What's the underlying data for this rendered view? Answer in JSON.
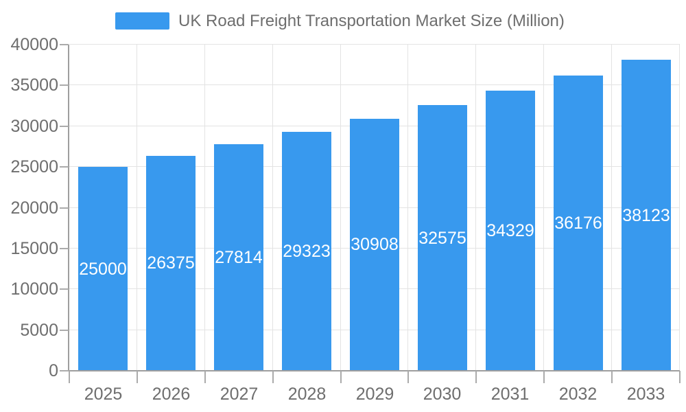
{
  "legend": {
    "label": "UK Road Freight Transportation Market Size (Million)"
  },
  "chart_data": {
    "type": "bar",
    "title": "UK Road Freight Transportation Market Size (Million)",
    "series_name": "UK Road Freight Transportation Market Size (Million)",
    "categories": [
      "2025",
      "2026",
      "2027",
      "2028",
      "2029",
      "2030",
      "2031",
      "2032",
      "2033"
    ],
    "values": [
      25000,
      26375,
      27814,
      29323,
      30908,
      32575,
      34329,
      36176,
      38123
    ],
    "xlabel": "",
    "ylabel": "",
    "ylim": [
      0,
      40000
    ],
    "ytick_step": 5000,
    "yticks": [
      0,
      5000,
      10000,
      15000,
      20000,
      25000,
      30000,
      35000,
      40000
    ],
    "grid": true,
    "legend_position": "top",
    "bar_labels": "inside-middle",
    "colors": {
      "bar": "#3899EE",
      "bar_label": "#FFFFFF",
      "grid": "#E3E3E3",
      "axis": "#9E9E9E",
      "tick": "#ABABAB",
      "axis_label": "#6E6E6E",
      "legend_text": "#6E6E6E",
      "background": "#FFFFFF"
    }
  }
}
